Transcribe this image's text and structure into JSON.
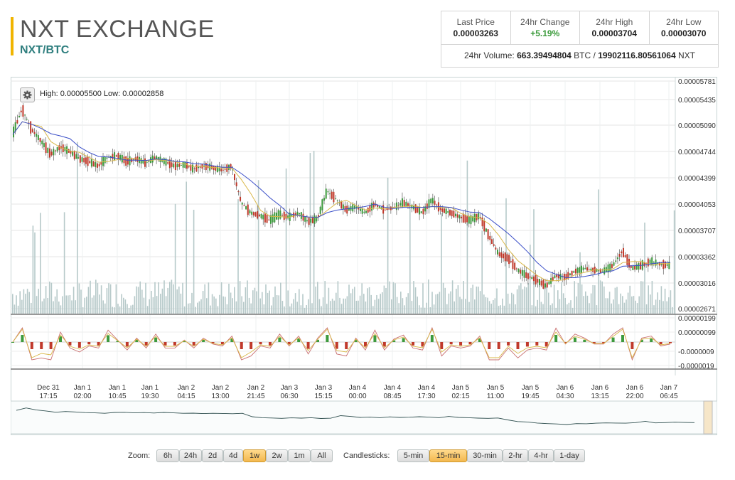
{
  "header": {
    "title": "NXT EXCHANGE",
    "pair": "NXT/BTC"
  },
  "stats": {
    "last_price_label": "Last Price",
    "last_price": "0.00003263",
    "change_label": "24hr Change",
    "change": "+5.19%",
    "high_label": "24hr High",
    "high": "0.00003704",
    "low_label": "24hr Low",
    "low": "0.00003070",
    "volume_prefix": "24hr Volume:",
    "volume_btc": "663.39494804",
    "volume_btc_unit": "BTC",
    "volume_sep": "/",
    "volume_nxt": "19902116.80561064",
    "volume_nxt_unit": "NXT"
  },
  "chart": {
    "high_low_text": "High: 0.00005500  Low: 0.00002858",
    "price_ticks": [
      "0.00005781",
      "0.00005435",
      "0.00005090",
      "0.00004744",
      "0.00004399",
      "0.00004053",
      "0.00003707",
      "0.00003362",
      "0.00003016",
      "0.00002671"
    ],
    "macd_ticks": [
      "0.00000199",
      "0.00000099",
      "-0.0000009",
      "-0.0000019"
    ],
    "time_ticks": [
      [
        "Dec 31",
        "17:15"
      ],
      [
        "Jan 1",
        "02:00"
      ],
      [
        "Jan 1",
        "10:45"
      ],
      [
        "Jan 1",
        "19:30"
      ],
      [
        "Jan 2",
        "04:15"
      ],
      [
        "Jan 2",
        "13:00"
      ],
      [
        "Jan 2",
        "21:45"
      ],
      [
        "Jan 3",
        "06:30"
      ],
      [
        "Jan 3",
        "15:15"
      ],
      [
        "Jan 4",
        "00:00"
      ],
      [
        "Jan 4",
        "08:45"
      ],
      [
        "Jan 4",
        "17:30"
      ],
      [
        "Jan 5",
        "02:15"
      ],
      [
        "Jan 5",
        "11:00"
      ],
      [
        "Jan 5",
        "19:45"
      ],
      [
        "Jan 6",
        "04:30"
      ],
      [
        "Jan 6",
        "13:15"
      ],
      [
        "Jan 6",
        "22:00"
      ],
      [
        "Jan 7",
        "06:45"
      ]
    ],
    "colors": {
      "up": "#3d9a3d",
      "down": "#c0392b",
      "ma_long": "#3b4fc8",
      "ma_short": "#d9b84a",
      "volume": "#b6c9c9",
      "navigator": "#2f4f4f"
    }
  },
  "chart_data": {
    "type": "candlestick",
    "title": "",
    "ylim": [
      2.671e-05,
      5.781e-05
    ],
    "close_series": [
      5.05e-05,
      5.4e-05,
      5.12e-05,
      4.96e-05,
      4.78e-05,
      4.88e-05,
      4.82e-05,
      4.72e-05,
      4.68e-05,
      4.62e-05,
      4.74e-05,
      4.76e-05,
      4.68e-05,
      4.72e-05,
      4.66e-05,
      4.74e-05,
      4.68e-05,
      4.62e-05,
      4.64e-05,
      4.58e-05,
      4.62e-05,
      4.6e-05,
      4.56e-05,
      4.62e-05,
      4.12e-05,
      3.98e-05,
      3.94e-05,
      3.88e-05,
      3.96e-05,
      3.92e-05,
      3.98e-05,
      3.86e-05,
      3.9e-05,
      4.28e-05,
      4.16e-05,
      4.02e-05,
      4.06e-05,
      3.98e-05,
      4.1e-05,
      4.02e-05,
      4.05e-05,
      4.12e-05,
      4.06e-05,
      3.98e-05,
      4.16e-05,
      4.02e-05,
      3.98e-05,
      3.92e-05,
      3.88e-05,
      3.94e-05,
      3.66e-05,
      3.42e-05,
      3.36e-05,
      3.2e-05,
      3.12e-05,
      3.06e-05,
      2.98e-05,
      3.12e-05,
      3.1e-05,
      3.18e-05,
      3.22e-05,
      3.2e-05,
      3.18e-05,
      3.26e-05,
      3.46e-05,
      3.22e-05,
      3.26e-05,
      3.32e-05,
      3.28e-05,
      3.26e-05
    ],
    "macd_range": [
      -1.9e-06,
      1.99e-06
    ]
  },
  "toolbar": {
    "zoom_label": "Zoom:",
    "zoom": [
      "6h",
      "24h",
      "2d",
      "4d",
      "1w",
      "2w",
      "1m",
      "All"
    ],
    "zoom_active": "1w",
    "candle_label": "Candlesticks:",
    "candles": [
      "5-min",
      "15-min",
      "30-min",
      "2-hr",
      "4-hr",
      "1-day"
    ],
    "candle_active": "15-min"
  }
}
